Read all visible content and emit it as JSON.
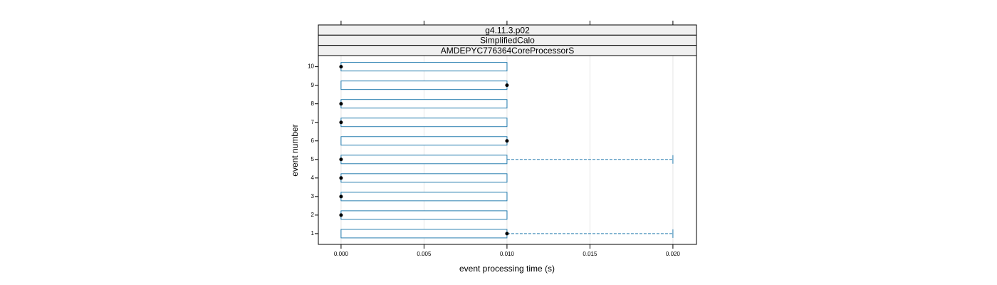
{
  "chart_data": {
    "type": "box",
    "strips": [
      "g4.11.3.p02",
      "SimplifiedCalo",
      "AMDEPYC776364CoreProcessorS"
    ],
    "xlabel": "event processing time (s)",
    "ylabel": "event number",
    "categories": [
      "1",
      "2",
      "3",
      "4",
      "5",
      "6",
      "7",
      "8",
      "9",
      "10"
    ],
    "min": [
      0,
      0,
      0,
      0,
      0,
      0,
      0,
      0,
      0,
      0
    ],
    "q1": [
      0,
      0,
      0,
      0,
      0,
      0,
      0,
      0,
      0,
      0
    ],
    "median": [
      0.01,
      0,
      0,
      0,
      0,
      0.01,
      0,
      0,
      0.01,
      0
    ],
    "q3": [
      0.01,
      0.01,
      0.01,
      0.01,
      0.01,
      0.01,
      0.01,
      0.01,
      0.01,
      0.01
    ],
    "max": [
      0.02,
      0.01,
      0.01,
      0.01,
      0.02,
      0.01,
      0.01,
      0.01,
      0.01,
      0.01
    ],
    "color": "#2a7fb0",
    "xlim": [
      -0.00137,
      0.02142
    ],
    "ylim": [
      0.42,
      10.6
    ],
    "xticks": [
      {
        "value": 0,
        "label": "0.000"
      },
      {
        "value": 0.005,
        "label": "0.005"
      },
      {
        "value": 0.01,
        "label": "0.010"
      },
      {
        "value": 0.015,
        "label": "0.015"
      },
      {
        "value": 0.02,
        "label": "0.020"
      }
    ],
    "grid": true
  }
}
